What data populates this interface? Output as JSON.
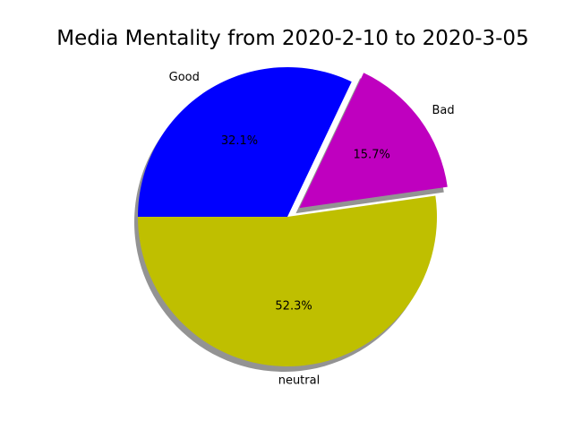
{
  "chart_data": {
    "type": "pie",
    "title": "Media Mentality from 2020-2-10 to 2020-3-05",
    "slices": [
      {
        "label": "neutral",
        "value": 52.3,
        "pct_label": "52.3%",
        "color": "#bfbf00",
        "exploded": false
      },
      {
        "label": "Bad",
        "value": 15.7,
        "pct_label": "15.7%",
        "color": "#bf00bf",
        "exploded": true
      },
      {
        "label": "Good",
        "value": 32.1,
        "pct_label": "32.1%",
        "color": "#0000ff",
        "exploded": false
      }
    ],
    "start_angle_deg": 180,
    "shadow": true,
    "legend": "none"
  }
}
